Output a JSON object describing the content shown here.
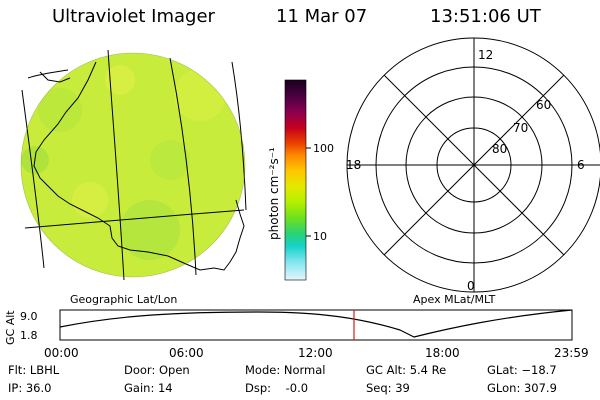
{
  "header": {
    "instrument": "Ultraviolet Imager",
    "date": "11 Mar 07",
    "time": "13:51:06 UT"
  },
  "colorbar": {
    "unit_label": "photon cm⁻²s⁻¹",
    "ticks": [
      "100",
      "10"
    ],
    "colors_top_to_bottom": [
      "#1a0020",
      "#4a0040",
      "#8a0050",
      "#c8001e",
      "#e83a00",
      "#ff8c00",
      "#ffc400",
      "#e6e800",
      "#b4f000",
      "#6ee01e",
      "#28d278",
      "#14d2c8",
      "#82e6f0",
      "#e6f5fa"
    ]
  },
  "left_panel": {
    "label": "Geographic Lat/Lon",
    "disk_color": "#c8ec3c"
  },
  "right_panel": {
    "label": "Apex MLat/MLT",
    "mlt_labels": {
      "top": "12",
      "left": "18",
      "right": "6",
      "bottom": "0"
    },
    "mlat_labels": [
      "60",
      "70",
      "80"
    ]
  },
  "altitude_plot": {
    "ylabel": "GC Alt",
    "ytick_max": "9.0",
    "ytick_min": "1.8",
    "xticks": [
      "00:00",
      "06:00",
      "12:00",
      "18:00",
      "23:59"
    ],
    "marker_color": "#d81b1b"
  },
  "info": {
    "flt": "Flt: LBHL",
    "ip": "IP: 36.0",
    "door": "Door: Open",
    "gain": "Gain: 14",
    "mode": "Mode: Normal",
    "dsp": "Dsp:    -0.0",
    "gc_alt": "GC Alt: 5.4 Re",
    "seq": "Seq: 39",
    "glat": "GLat: −18.7",
    "glon": "GLon: 307.9"
  }
}
